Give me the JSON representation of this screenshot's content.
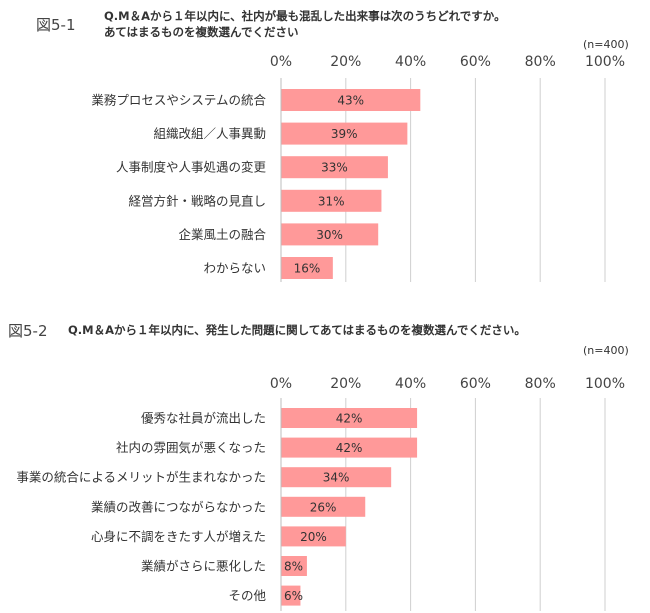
{
  "figures": [
    {
      "label": "図5-1",
      "question_line1": "Q.M＆Aから１年以内に、社内が最も混乱した出来事は次のうちどれですか。",
      "question_line2": "あてはまるものを複数選んでください",
      "note": "(n=400)"
    },
    {
      "label": "図5-2",
      "question_line1": "Q.M＆Aから１年以内に、発生した問題に関してあてはまるものを複数選んでください。",
      "note": "(n=400)"
    }
  ],
  "chart_data": [
    {
      "type": "bar",
      "orientation": "horizontal",
      "bar_color": "#ff9999",
      "xlim": [
        0,
        100
      ],
      "ticks": [
        "0%",
        "20%",
        "40%",
        "60%",
        "80%",
        "100%"
      ],
      "tick_values": [
        0,
        20,
        40,
        60,
        80,
        100
      ],
      "grid": true,
      "categories": [
        "業務プロセスやシステムの統合",
        "組織改組／人事異動",
        "人事制度や人事処遇の変更",
        "経営方針・戦略の見直し",
        "企業風土の融合",
        "わからない"
      ],
      "values": [
        43,
        39,
        33,
        31,
        30,
        16
      ],
      "data_labels": [
        "43%",
        "39%",
        "33%",
        "31%",
        "30%",
        "16%"
      ]
    },
    {
      "type": "bar",
      "orientation": "horizontal",
      "bar_color": "#ff9999",
      "xlim": [
        0,
        100
      ],
      "ticks": [
        "0%",
        "20%",
        "40%",
        "60%",
        "80%",
        "100%"
      ],
      "tick_values": [
        0,
        20,
        40,
        60,
        80,
        100
      ],
      "grid": true,
      "categories": [
        "優秀な社員が流出した",
        "社内の雰囲気が悪くなった",
        "事業の統合によるメリットが生まれなかった",
        "業績の改善につながらなかった",
        "心身に不調をきたす人が増えた",
        "業績がさらに悪化した",
        "その他"
      ],
      "values": [
        42,
        42,
        34,
        26,
        20,
        8,
        6
      ],
      "data_labels": [
        "42%",
        "42%",
        "34%",
        "26%",
        "20%",
        "8%",
        "6%"
      ]
    }
  ]
}
